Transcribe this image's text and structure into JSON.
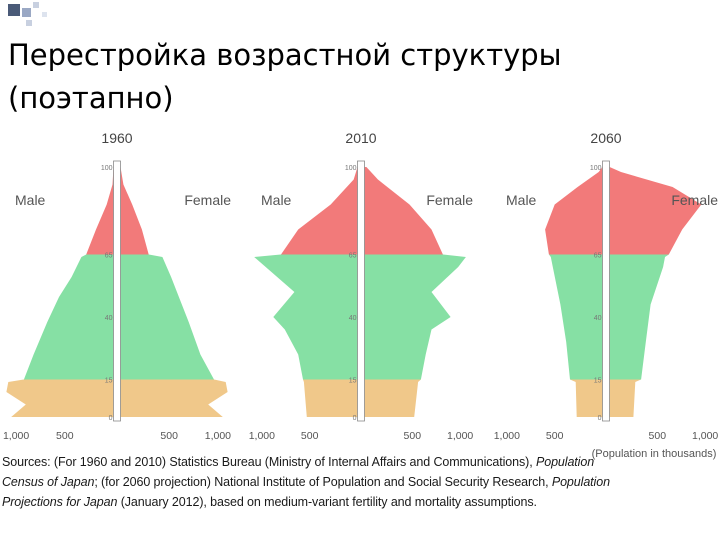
{
  "slide": {
    "title": "Перестройка возрастной структуры (поэтапно)"
  },
  "labels": {
    "male": "Male",
    "female": "Female",
    "unit_note": "(Population in thousands)"
  },
  "colors": {
    "age_0_14": "#f0c88a",
    "age_15_64": "#86e0a4",
    "age_65_plus": "#f27a7a",
    "axis_bar": "#ffffff",
    "axis_outline": "#8a8a8a"
  },
  "sources": {
    "line1_a": "Sources: (For 1960 and 2010) Statistics Bureau (Ministry of Internal Affairs and Communications), ",
    "line1_b": "Population",
    "line2_a": "Census of Japan",
    "line2_b": "; (for 2060 projection) National Institute of Population and Social Security Research, ",
    "line2_c": "Population",
    "line3_a": "Projections for Japan",
    "line3_b": " (January 2012), based on medium-variant fertility and mortality assumptions."
  },
  "chart_data": [
    {
      "type": "population-pyramid",
      "title": "1960",
      "age_ticks": [
        "0",
        "15",
        "40",
        "65",
        "100"
      ],
      "x_ticks_male": [
        "1,000",
        "500"
      ],
      "x_ticks_female": [
        "500",
        "1,000"
      ],
      "xlim": [
        0,
        1150
      ],
      "ylim": [
        0,
        100
      ],
      "age_groups": [
        "0-14",
        "15-64",
        "65+"
      ],
      "profile": [
        {
          "age": 0,
          "male": 1050,
          "female": 1050
        },
        {
          "age": 5,
          "male": 900,
          "female": 900
        },
        {
          "age": 10,
          "male": 1100,
          "female": 1100
        },
        {
          "age": 14,
          "male": 1080,
          "female": 1080
        },
        {
          "age": 15,
          "male": 920,
          "female": 960
        },
        {
          "age": 25,
          "male": 820,
          "female": 820
        },
        {
          "age": 38,
          "male": 680,
          "female": 700
        },
        {
          "age": 48,
          "male": 560,
          "female": 600
        },
        {
          "age": 56,
          "male": 430,
          "female": 520
        },
        {
          "age": 64,
          "male": 330,
          "female": 430
        },
        {
          "age": 65,
          "male": 280,
          "female": 290
        },
        {
          "age": 75,
          "male": 180,
          "female": 220
        },
        {
          "age": 85,
          "male": 70,
          "female": 120
        },
        {
          "age": 93,
          "male": 10,
          "female": 30
        },
        {
          "age": 100,
          "male": 0,
          "female": 0
        }
      ]
    },
    {
      "type": "population-pyramid",
      "title": "2010",
      "age_ticks": [
        "0",
        "15",
        "40",
        "65",
        "100"
      ],
      "x_ticks_male": [
        "1,000",
        "500"
      ],
      "x_ticks_female": [
        "500",
        "1,000"
      ],
      "xlim": [
        0,
        1150
      ],
      "ylim": [
        0,
        100
      ],
      "age_groups": [
        "0-14",
        "15-64",
        "65+"
      ],
      "profile": [
        {
          "age": 0,
          "male": 530,
          "female": 520
        },
        {
          "age": 14,
          "male": 560,
          "female": 560
        },
        {
          "age": 15,
          "male": 570,
          "female": 590
        },
        {
          "age": 25,
          "male": 620,
          "female": 640
        },
        {
          "age": 35,
          "male": 760,
          "female": 700
        },
        {
          "age": 40,
          "male": 880,
          "female": 900
        },
        {
          "age": 50,
          "male": 660,
          "female": 700
        },
        {
          "age": 60,
          "male": 960,
          "female": 980
        },
        {
          "age": 64,
          "male": 1080,
          "female": 1060
        },
        {
          "age": 65,
          "male": 800,
          "female": 820
        },
        {
          "age": 75,
          "male": 620,
          "female": 700
        },
        {
          "age": 85,
          "male": 280,
          "female": 470
        },
        {
          "age": 95,
          "male": 40,
          "female": 140
        },
        {
          "age": 100,
          "male": 0,
          "female": 20
        }
      ]
    },
    {
      "type": "population-pyramid",
      "title": "2060",
      "age_ticks": [
        "0",
        "15",
        "40",
        "65",
        "100"
      ],
      "x_ticks_male": [
        "1,000",
        "500"
      ],
      "x_ticks_female": [
        "500",
        "1,000"
      ],
      "xlim": [
        0,
        1150
      ],
      "ylim": [
        0,
        100
      ],
      "age_groups": [
        "0-14",
        "15-64",
        "65+"
      ],
      "profile": [
        {
          "age": 0,
          "male": 270,
          "female": 250
        },
        {
          "age": 14,
          "male": 280,
          "female": 270
        },
        {
          "age": 15,
          "male": 340,
          "female": 330
        },
        {
          "age": 30,
          "male": 380,
          "female": 380
        },
        {
          "age": 45,
          "male": 440,
          "female": 430
        },
        {
          "age": 60,
          "male": 520,
          "female": 560
        },
        {
          "age": 64,
          "male": 540,
          "female": 580
        },
        {
          "age": 65,
          "male": 560,
          "female": 620
        },
        {
          "age": 75,
          "male": 600,
          "female": 760
        },
        {
          "age": 85,
          "male": 500,
          "female": 960
        },
        {
          "age": 92,
          "male": 260,
          "female": 660
        },
        {
          "age": 98,
          "male": 40,
          "female": 120
        },
        {
          "age": 100,
          "male": 0,
          "female": 0
        }
      ]
    }
  ]
}
